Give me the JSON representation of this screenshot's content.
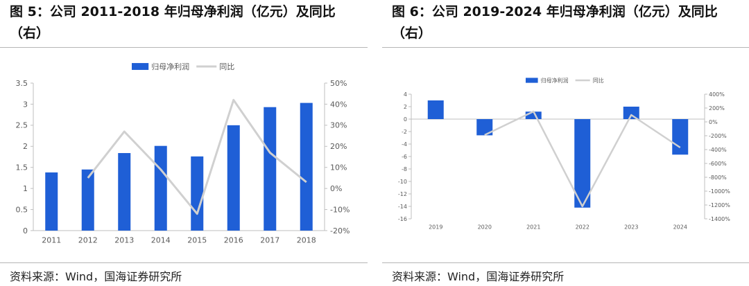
{
  "left": {
    "title": "图 5：公司 2011-2018 年归母净利润（亿元）及同比（右）",
    "source": "资料来源：Wind，国海证券研究所"
  },
  "right": {
    "title": "图 6：公司 2019-2024 年归母净利润（亿元）及同比（右）",
    "source": "资料来源：Wind，国海证券研究所"
  },
  "chart_data": [
    {
      "type": "bar",
      "categories": [
        "2011",
        "2012",
        "2013",
        "2014",
        "2015",
        "2016",
        "2017",
        "2018"
      ],
      "series": [
        {
          "name": "归母净利润",
          "type": "bar",
          "axis": "left",
          "values": [
            1.38,
            1.45,
            1.84,
            2.01,
            1.76,
            2.5,
            2.93,
            3.03
          ],
          "color": "#1f5fd6"
        },
        {
          "name": "同比",
          "type": "line",
          "axis": "right",
          "values": [
            null,
            5,
            27,
            9,
            -12,
            42,
            17,
            3
          ],
          "color": "#d0d0d0"
        }
      ],
      "y_left": {
        "min": 0,
        "max": 3.5,
        "ticks": [
          "0",
          "0.5",
          "1",
          "1.5",
          "2",
          "2.5",
          "3",
          "3.5"
        ]
      },
      "y_right": {
        "min": -20,
        "max": 50,
        "ticks": [
          "-20%",
          "-10%",
          "0%",
          "10%",
          "20%",
          "30%",
          "40%",
          "50%"
        ]
      },
      "legend": "top-center",
      "grid": false
    },
    {
      "type": "bar",
      "categories": [
        "2019",
        "2020",
        "2021",
        "2022",
        "2023",
        "2024"
      ],
      "series": [
        {
          "name": "归母净利润",
          "type": "bar",
          "axis": "left",
          "values": [
            3.0,
            -2.6,
            1.2,
            -14.2,
            2.0,
            -5.7
          ],
          "color": "#1f5fd6"
        },
        {
          "name": "同比",
          "type": "line",
          "axis": "right",
          "values": [
            null,
            -190,
            150,
            -1220,
            100,
            -370
          ],
          "color": "#d0d0d0"
        }
      ],
      "y_left": {
        "min": -16,
        "max": 4,
        "ticks": [
          "-16",
          "-14",
          "-12",
          "-10",
          "-8",
          "-6",
          "-4",
          "-2",
          "0",
          "2",
          "4"
        ]
      },
      "y_right": {
        "min": -1400,
        "max": 400,
        "ticks": [
          "-1400%",
          "-1200%",
          "-1000%",
          "-800%",
          "-600%",
          "-400%",
          "-200%",
          "0%",
          "200%",
          "400%"
        ]
      },
      "legend": "top-center",
      "grid": false
    }
  ]
}
